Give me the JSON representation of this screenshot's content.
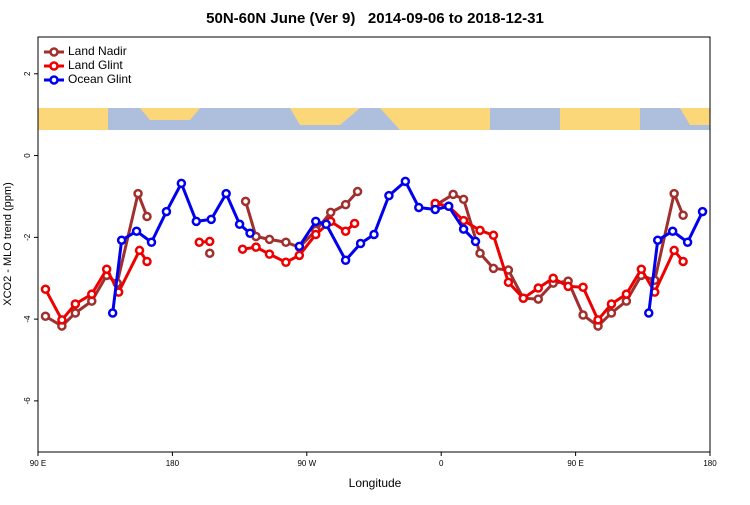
{
  "chart_data": {
    "type": "line",
    "title": "50N-60N June (Ver 9)   2014-09-06 to 2018-12-31",
    "xlabel": "Longitude",
    "ylabel": "XCO2 - MLO trend (ppm)",
    "xlim": [
      90,
      540
    ],
    "xticks": [
      {
        "value": 90,
        "label": "90 E"
      },
      180,
      {
        "value": 270,
        "label": "90 W"
      },
      {
        "value": 360,
        "label": "0"
      },
      {
        "value": 450,
        "label": "90 E"
      },
      {
        "value": 540,
        "label": "180"
      }
    ],
    "ylim": [
      -7.25,
      2.9
    ],
    "yticks": [
      -6,
      -4,
      -2,
      0,
      2
    ],
    "legend": "top-left",
    "series": [
      {
        "name": "Land Nadir",
        "color": "#a0302e",
        "x": [
          95,
          106,
          115,
          126,
          136,
          143,
          157,
          163,
          null,
          205,
          null,
          229,
          236,
          245,
          256,
          265,
          276,
          286,
          296,
          304,
          null,
          356,
          368,
          375,
          386,
          395,
          405,
          415,
          425,
          435,
          445,
          455,
          465,
          474,
          484,
          494,
          503,
          516,
          522
        ],
        "values": [
          -3.93,
          -4.17,
          -3.85,
          -3.56,
          -2.93,
          -3.12,
          -0.93,
          -1.49,
          null,
          -2.39,
          null,
          -1.12,
          -1.98,
          -2.05,
          -2.12,
          -2.24,
          -1.83,
          -1.39,
          -1.2,
          -0.88,
          null,
          -1.22,
          -0.95,
          -1.07,
          -2.39,
          -2.76,
          -2.8,
          -3.49,
          -3.51,
          -3.12,
          -3.07,
          -3.9,
          -4.17,
          -3.85,
          -3.56,
          -2.93,
          -3.05,
          -0.93,
          -1.46
        ]
      },
      {
        "name": "Land Glint",
        "color": "#ee0000",
        "x": [
          95,
          106,
          115,
          126,
          136,
          144,
          158,
          163,
          null,
          198,
          205,
          null,
          227,
          236,
          245,
          256,
          265,
          276,
          286,
          296,
          302,
          null,
          356,
          365,
          375,
          386,
          395,
          405,
          415,
          425,
          435,
          445,
          455,
          465,
          474,
          484,
          494,
          503,
          516,
          522
        ],
        "values": [
          -3.27,
          -4.02,
          -3.63,
          -3.39,
          -2.78,
          -3.34,
          -2.32,
          -2.59,
          null,
          -2.12,
          -2.1,
          null,
          -2.29,
          -2.24,
          -2.41,
          -2.61,
          -2.44,
          -1.93,
          -1.61,
          -1.85,
          -1.66,
          null,
          -1.17,
          -1.24,
          -1.59,
          -1.83,
          -1.95,
          -3.1,
          -3.49,
          -3.24,
          -3.0,
          -3.2,
          -3.22,
          -4.02,
          -3.63,
          -3.39,
          -2.78,
          -3.34,
          -2.32,
          -2.59
        ]
      },
      {
        "name": "Ocean Glint",
        "color": "#0000ee",
        "x": [
          140,
          146,
          156,
          166,
          176,
          186,
          196,
          206,
          216,
          225,
          232,
          null,
          265,
          276,
          283,
          296,
          306,
          315,
          325,
          336,
          345,
          356,
          365,
          375,
          383,
          null,
          499,
          505,
          515,
          525,
          535
        ],
        "values": [
          -3.85,
          -2.07,
          -1.85,
          -2.12,
          -1.37,
          -0.68,
          -1.61,
          -1.56,
          -0.93,
          -1.68,
          -1.9,
          null,
          -2.22,
          -1.61,
          -1.68,
          -2.56,
          -2.15,
          -1.93,
          -0.98,
          -0.63,
          -1.27,
          -1.32,
          -1.24,
          -1.8,
          -2.1,
          null,
          -3.85,
          -2.07,
          -1.85,
          -2.12,
          -1.37
        ]
      }
    ]
  }
}
